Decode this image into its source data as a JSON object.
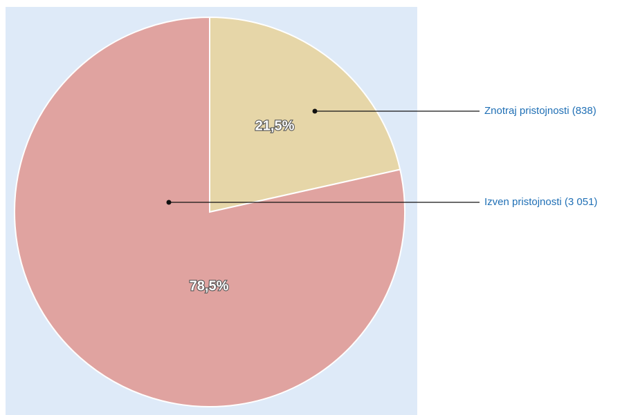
{
  "chart_data": {
    "type": "pie",
    "categories": [
      "Znotraj pristojnosti (838)",
      "Izven pristojnosti (3 051)"
    ],
    "values": [
      21.5,
      78.5
    ],
    "value_labels": [
      "21,5%",
      "78,5%"
    ],
    "colors": [
      "#e6d6a8",
      "#e0a3a0"
    ]
  }
}
